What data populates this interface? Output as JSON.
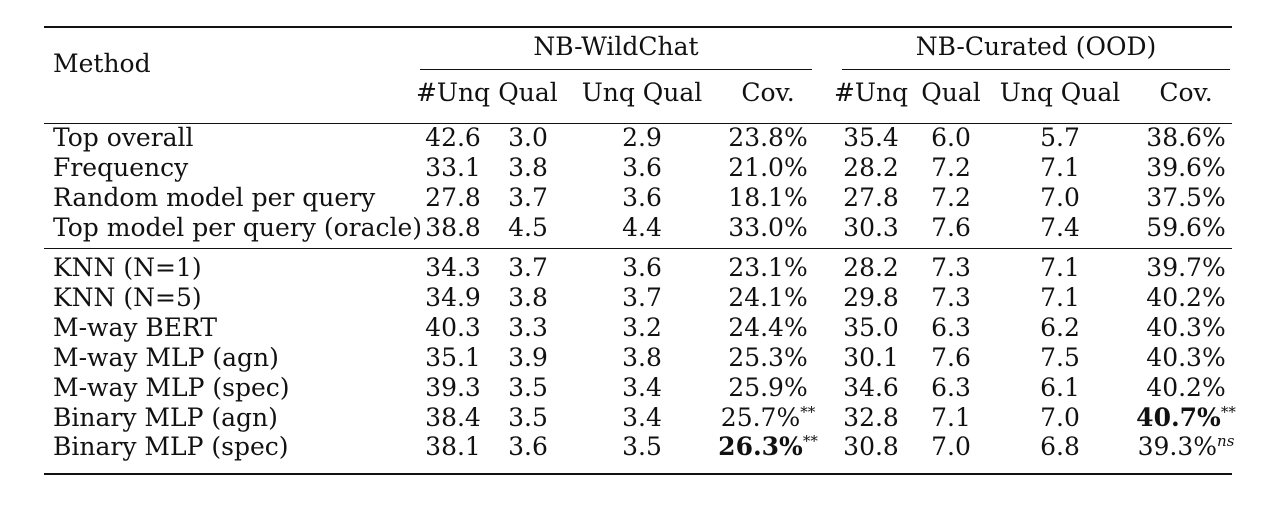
{
  "table": {
    "method_header": "Method",
    "groups": [
      {
        "title": "NB-WildChat"
      },
      {
        "title": "NB-Curated (OOD)"
      }
    ],
    "sub_headers": [
      "#Unq",
      "Qual",
      "Unq Qual",
      "Cov.",
      "#Unq",
      "Qual",
      "Unq Qual",
      "Cov."
    ],
    "sections": [
      {
        "rows": [
          {
            "method": "Top overall",
            "values": [
              "42.6",
              "3.0",
              "2.9",
              "23.8%",
              "35.4",
              "6.0",
              "5.7",
              "38.6%"
            ]
          },
          {
            "method": "Frequency",
            "values": [
              "33.1",
              "3.8",
              "3.6",
              "21.0%",
              "28.2",
              "7.2",
              "7.1",
              "39.6%"
            ]
          },
          {
            "method": "Random model per query",
            "values": [
              "27.8",
              "3.7",
              "3.6",
              "18.1%",
              "27.8",
              "7.2",
              "7.0",
              "37.5%"
            ]
          },
          {
            "method": "Top model per query (oracle)",
            "values": [
              "38.8",
              "4.5",
              "4.4",
              "33.0%",
              "30.3",
              "7.6",
              "7.4",
              "59.6%"
            ]
          }
        ]
      },
      {
        "rows": [
          {
            "method": "KNN (N=1)",
            "values": [
              "34.3",
              "3.7",
              "3.6",
              "23.1%",
              "28.2",
              "7.3",
              "7.1",
              "39.7%"
            ]
          },
          {
            "method": "KNN (N=5)",
            "values": [
              "34.9",
              "3.8",
              "3.7",
              "24.1%",
              "29.8",
              "7.3",
              "7.1",
              "40.2%"
            ]
          },
          {
            "method": "M-way BERT",
            "values": [
              "40.3",
              "3.3",
              "3.2",
              "24.4%",
              "35.0",
              "6.3",
              "6.2",
              "40.3%"
            ]
          },
          {
            "method": "M-way MLP (agn)",
            "values": [
              "35.1",
              "3.9",
              "3.8",
              "25.3%",
              "30.1",
              "7.6",
              "7.5",
              "40.3%"
            ]
          },
          {
            "method": "M-way MLP (spec)",
            "values": [
              "39.3",
              "3.5",
              "3.4",
              "25.9%",
              "34.6",
              "6.3",
              "6.1",
              "40.2%"
            ]
          },
          {
            "method": "Binary MLP (agn)",
            "values": [
              "38.4",
              "3.5",
              "3.4",
              "25.7%",
              "32.8",
              "7.1",
              "7.0",
              "40.7%"
            ],
            "sup": {
              "3": "**",
              "7": "**"
            },
            "bold": [
              7
            ]
          },
          {
            "method": "Binary MLP (spec)",
            "values": [
              "38.1",
              "3.6",
              "3.5",
              "26.3%",
              "30.8",
              "7.0",
              "6.8",
              "39.3%"
            ],
            "sup": {
              "3": "**",
              "7": "ns"
            },
            "bold": [
              3
            ],
            "italic_sup": [
              7
            ]
          }
        ]
      }
    ]
  }
}
